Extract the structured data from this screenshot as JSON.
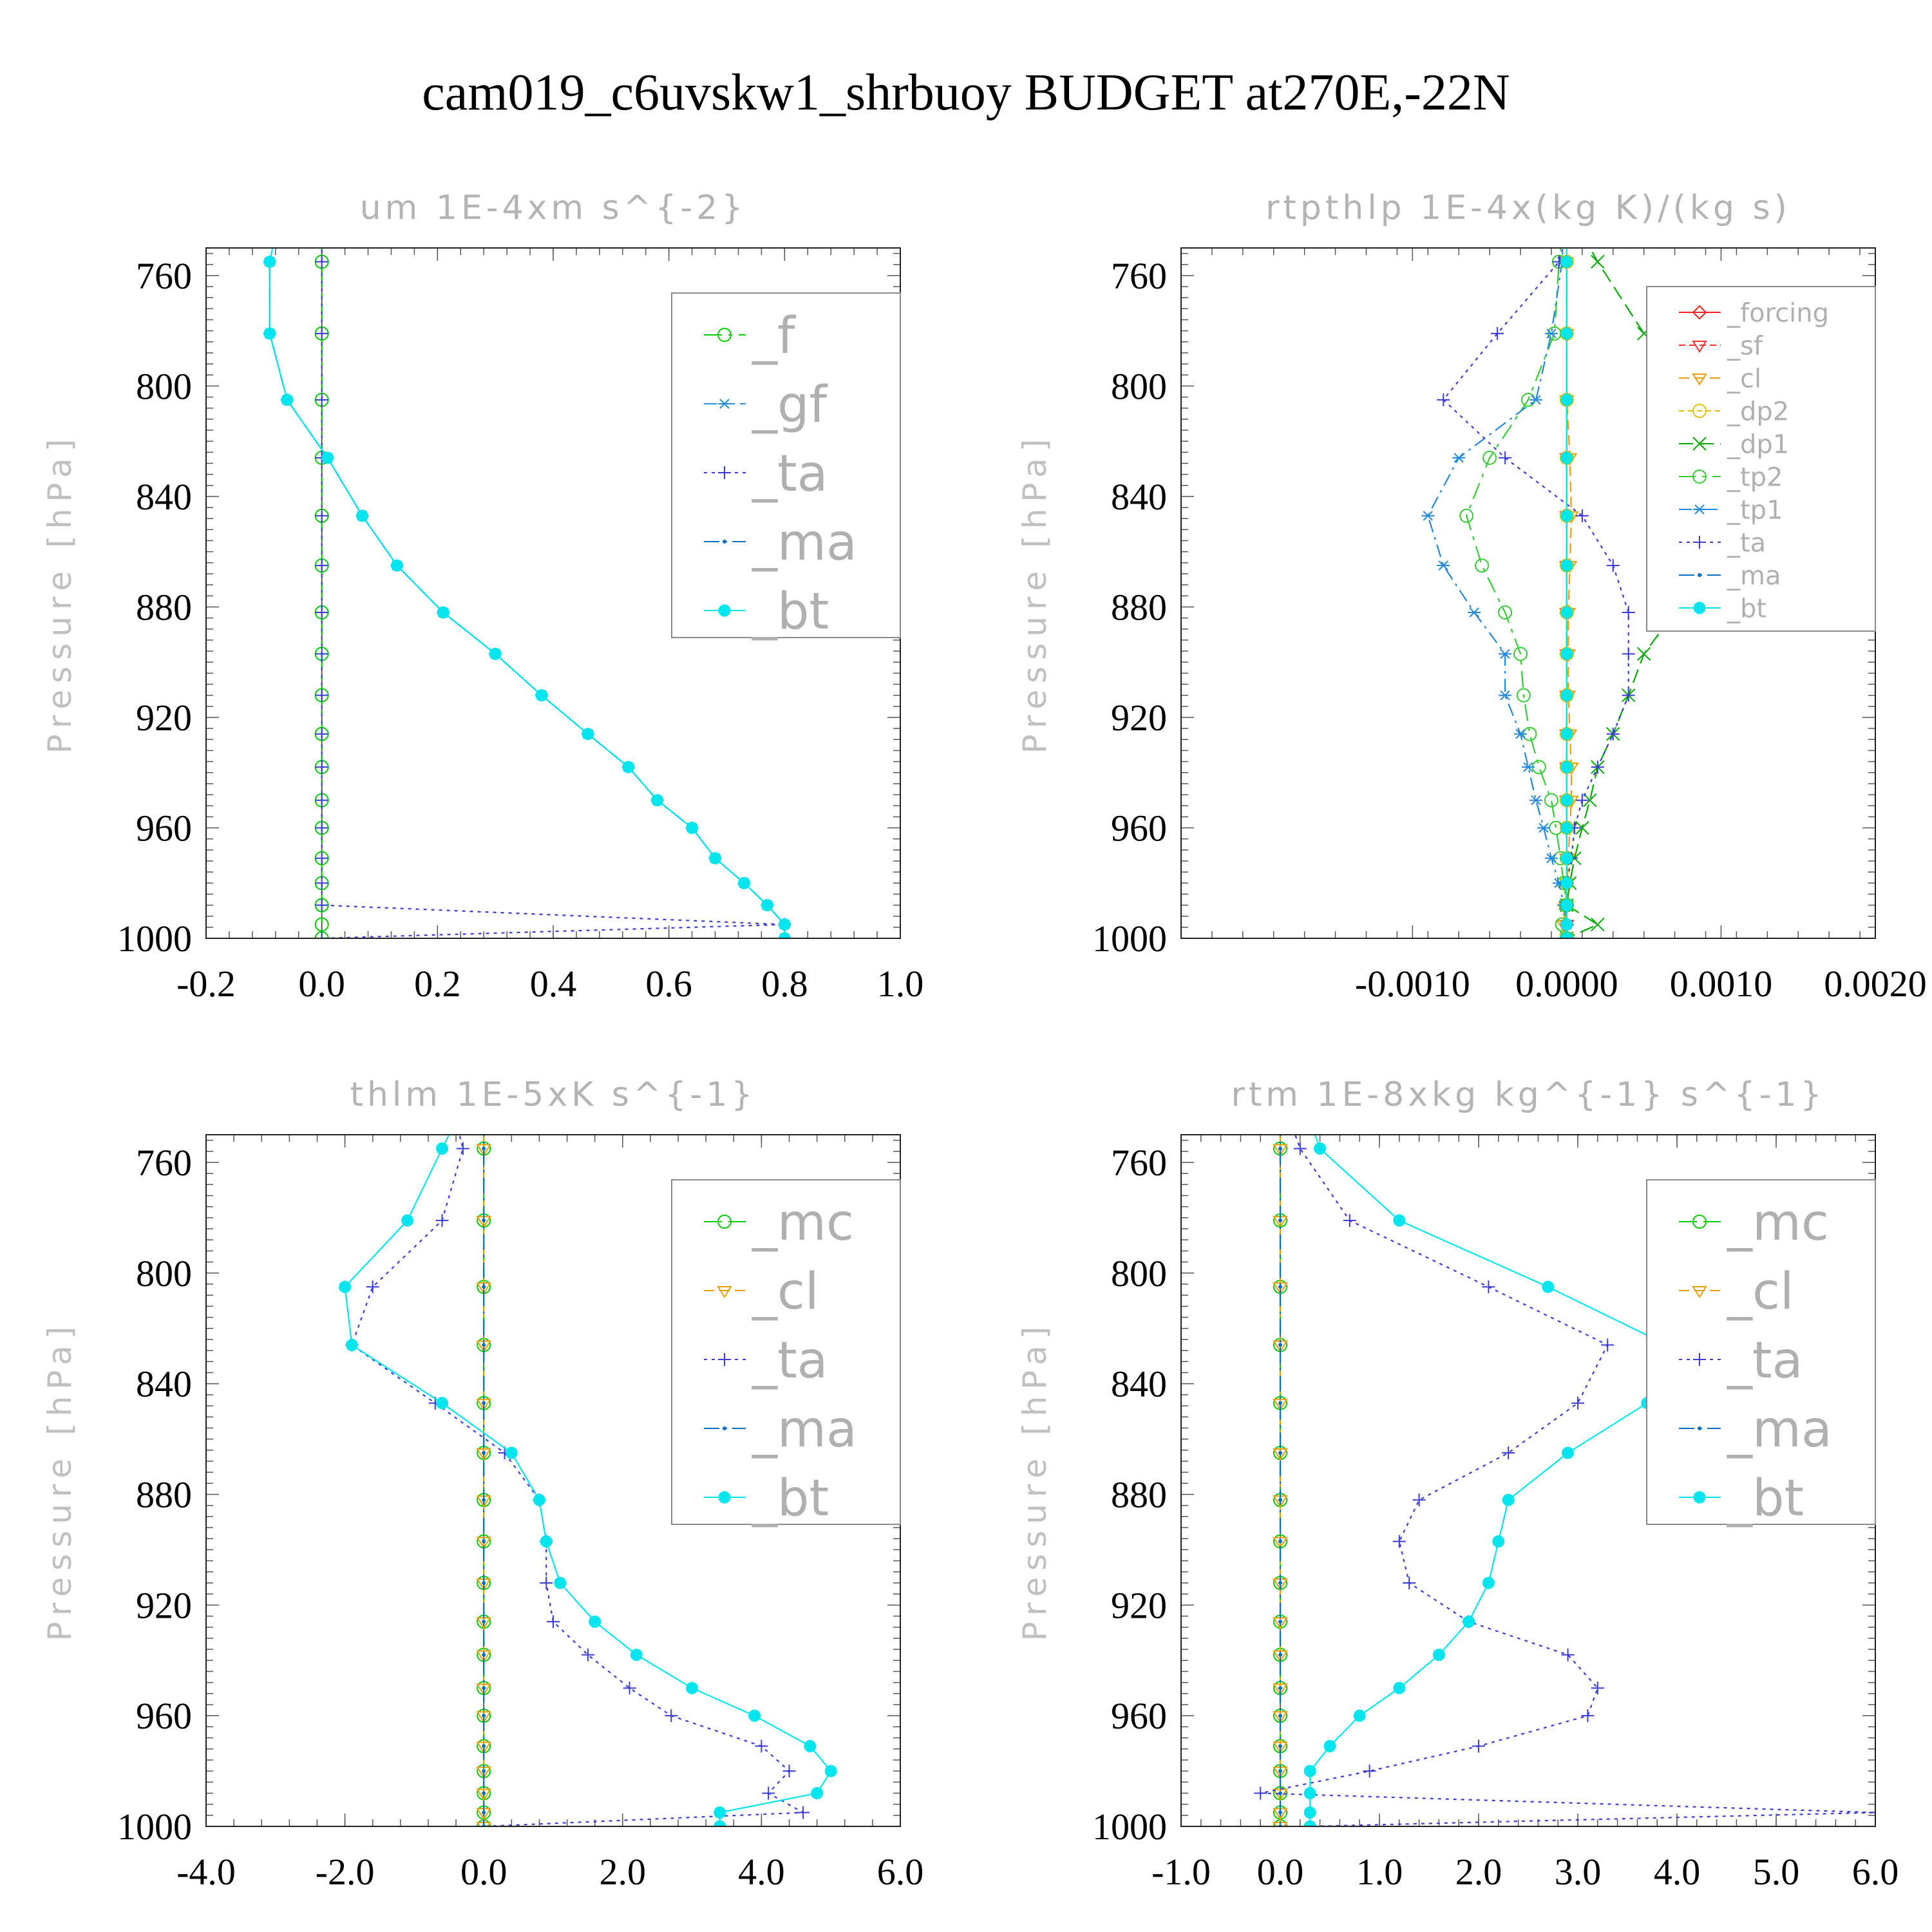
{
  "title": "cam019_c6uvskw1_shrbuoy  BUDGET at270E,-22N",
  "ylabel": "Pressure [hPa]",
  "colors": {
    "_f": "#00cc00",
    "_gf": "#2090e0",
    "_ta": "#3b3bd8",
    "_ma": "#0070c0",
    "_bt": "#00e5ee",
    "_forcing": "#ff2020",
    "_sf": "#ff3030",
    "_cl": "#e8a000",
    "_dp2": "#e0c000",
    "_dp1": "#00aa00",
    "_tp2": "#33cc33",
    "_tp1": "#2288dd",
    "_mc": "#00cc00",
    "_cl2": "#2090e0"
  },
  "chart_data": [
    {
      "type": "line",
      "title": "um  1E-4xm s^{-2}",
      "ylabel": "Pressure [hPa]",
      "xlim": [
        -0.2,
        1.0
      ],
      "ylim": [
        1000,
        750
      ],
      "xticks": [
        "-0.2",
        "0.0",
        "0.2",
        "0.4",
        "0.6",
        "0.8",
        "1.0"
      ],
      "xtick_values": [
        -0.2,
        0.0,
        0.2,
        0.4,
        0.6,
        0.8,
        1.0
      ],
      "yticks": [
        "760",
        "800",
        "840",
        "880",
        "920",
        "960",
        "1000"
      ],
      "legend_position": "upper-right",
      "legend": [
        "_f",
        "_gf",
        "_ta",
        "_ma",
        "_bt"
      ],
      "y": [
        745,
        755,
        781,
        805,
        826,
        847,
        865,
        882,
        897,
        912,
        926,
        938,
        950,
        960,
        971,
        980,
        988,
        995,
        1000
      ],
      "series": [
        {
          "name": "_f",
          "values": [
            0,
            0,
            0,
            0,
            0,
            0,
            0,
            0,
            0,
            0,
            0,
            0,
            0,
            0,
            0,
            0,
            0,
            0,
            0
          ]
        },
        {
          "name": "_gf",
          "values": [
            -0.08,
            -0.09,
            -0.09,
            -0.06,
            0.01,
            0.07,
            0.13,
            0.21,
            0.3,
            0.38,
            0.46,
            0.53,
            0.58,
            0.64,
            0.68,
            0.73,
            0.77,
            0.8,
            0.8
          ]
        },
        {
          "name": "_ta",
          "values": [
            0,
            0,
            0,
            0,
            0,
            0,
            0,
            0,
            0,
            0,
            0,
            0,
            0,
            0,
            0,
            0,
            0,
            0.8,
            0
          ]
        },
        {
          "name": "_ma",
          "values": [
            -0.08,
            -0.09,
            -0.09,
            -0.06,
            0.01,
            0.07,
            0.13,
            0.21,
            0.3,
            0.38,
            0.46,
            0.53,
            0.58,
            0.64,
            0.68,
            0.73,
            0.77,
            0.8,
            0.8
          ]
        },
        {
          "name": "_bt",
          "values": [
            -0.08,
            -0.09,
            -0.09,
            -0.06,
            0.01,
            0.07,
            0.13,
            0.21,
            0.3,
            0.38,
            0.46,
            0.53,
            0.58,
            0.64,
            0.68,
            0.73,
            0.77,
            0.8,
            0.8
          ]
        }
      ]
    },
    {
      "type": "line",
      "title": "rtpthlp  1E-4x(kg K)/(kg s)",
      "ylabel": "Pressure [hPa]",
      "xlim": [
        -0.0025,
        0.002
      ],
      "ylim": [
        1000,
        750
      ],
      "xticks": [
        "-0.0010",
        "0.0000",
        "0.0010",
        "0.0020"
      ],
      "xtick_values": [
        -0.001,
        0.0,
        0.001,
        0.002
      ],
      "yticks": [
        "760",
        "800",
        "840",
        "880",
        "920",
        "960",
        "1000"
      ],
      "legend_position": "upper-right",
      "legend": [
        "_forcing",
        "_sf",
        "_cl",
        "_dp2",
        "_dp1",
        "_tp2",
        "_tp1",
        "_ta",
        "_ma",
        "_bt"
      ],
      "y": [
        745,
        755,
        781,
        805,
        826,
        847,
        865,
        882,
        897,
        912,
        926,
        938,
        950,
        960,
        971,
        980,
        988,
        995,
        1000
      ],
      "series": [
        {
          "name": "_forcing",
          "values": [
            0,
            0,
            0,
            0,
            0,
            0,
            0,
            0,
            0,
            0,
            0,
            0,
            0,
            0,
            0,
            0,
            0,
            0,
            0
          ]
        },
        {
          "name": "_sf",
          "values": [
            0,
            0,
            0,
            0,
            0,
            0,
            0,
            0,
            0,
            0,
            0,
            0,
            0,
            0,
            0,
            0,
            0,
            0,
            0
          ]
        },
        {
          "name": "_cl",
          "values": [
            0,
            0,
            0,
            0,
            2e-05,
            3e-05,
            2e-05,
            1e-05,
            1e-05,
            1e-05,
            2e-05,
            3e-05,
            3e-05,
            2e-05,
            1e-05,
            0,
            0,
            -2e-05,
            0
          ]
        },
        {
          "name": "_dp2",
          "values": [
            0,
            0,
            0,
            0,
            0,
            0,
            0,
            0,
            0,
            0,
            0,
            0,
            0,
            0,
            0,
            0,
            -1e-05,
            -3e-05,
            0
          ]
        },
        {
          "name": "_dp1",
          "values": [
            0.0001,
            0.0002,
            0.0005,
            0.001,
            0.0017,
            0.0016,
            0.0011,
            0.0007,
            0.0005,
            0.0004,
            0.0003,
            0.0002,
            0.00015,
            0.0001,
            5e-05,
            2e-05,
            0,
            0.0002,
            0
          ]
        },
        {
          "name": "_tp2",
          "values": [
            -3e-05,
            -5e-05,
            -8e-05,
            -0.00025,
            -0.0005,
            -0.00065,
            -0.00055,
            -0.0004,
            -0.0003,
            -0.00028,
            -0.00024,
            -0.00018,
            -0.0001,
            -7e-05,
            -4e-05,
            -2e-05,
            0,
            -3e-05,
            0
          ]
        },
        {
          "name": "_tp1",
          "values": [
            -2e-05,
            -3e-05,
            -0.0001,
            -0.0002,
            -0.0007,
            -0.0009,
            -0.0008,
            -0.0006,
            -0.0004,
            -0.0004,
            -0.0003,
            -0.00025,
            -0.0002,
            -0.00015,
            -0.0001,
            -5e-05,
            -2e-05,
            0,
            0
          ]
        },
        {
          "name": "_ta",
          "values": [
            0,
            -5e-05,
            -0.00045,
            -0.0008,
            -0.0004,
            0.0001,
            0.0003,
            0.0004,
            0.0004,
            0.0004,
            0.0003,
            0.0002,
            0.0001,
            5e-05,
            3e-05,
            0,
            0,
            0,
            0
          ]
        },
        {
          "name": "_ma",
          "values": [
            0,
            0,
            0,
            0,
            0,
            0,
            0,
            0,
            0,
            0,
            0,
            0,
            0,
            0,
            0,
            0,
            0,
            0,
            0
          ]
        },
        {
          "name": "_bt",
          "values": [
            0,
            0,
            0,
            0,
            0,
            0,
            0,
            0,
            0,
            0,
            0,
            0,
            0,
            0,
            0,
            0,
            0,
            0,
            0
          ]
        }
      ]
    },
    {
      "type": "line",
      "title": "thlm  1E-5xK s^{-1}",
      "ylabel": "Pressure [hPa]",
      "xlim": [
        -4.0,
        6.0
      ],
      "ylim": [
        1000,
        750
      ],
      "xticks": [
        "-4.0",
        "-2.0",
        "0.0",
        "2.0",
        "4.0",
        "6.0"
      ],
      "xtick_values": [
        -4.0,
        -2.0,
        0.0,
        2.0,
        4.0,
        6.0
      ],
      "yticks": [
        "760",
        "800",
        "840",
        "880",
        "920",
        "960",
        "1000"
      ],
      "legend_position": "upper-right",
      "legend": [
        "_mc",
        "_cl",
        "_ta",
        "_ma",
        "_bt"
      ],
      "y": [
        745,
        755,
        781,
        805,
        826,
        847,
        865,
        882,
        897,
        912,
        926,
        938,
        950,
        960,
        971,
        980,
        988,
        995,
        1000
      ],
      "series": [
        {
          "name": "_mc",
          "values": [
            0,
            0,
            0,
            0,
            0,
            0,
            0,
            0,
            0,
            0,
            0,
            0,
            0,
            0,
            0,
            0,
            0,
            0,
            0
          ]
        },
        {
          "name": "_cl",
          "values": [
            0,
            0,
            0,
            0,
            0,
            0,
            0,
            0,
            0,
            0,
            0,
            0,
            0,
            0,
            0,
            0,
            0,
            0,
            0
          ]
        },
        {
          "name": "_ta",
          "values": [
            -0.4,
            -0.3,
            -0.6,
            -1.6,
            -1.9,
            -0.7,
            0.3,
            0.8,
            0.9,
            0.9,
            1.0,
            1.5,
            2.1,
            2.7,
            4.0,
            4.4,
            4.1,
            4.6,
            0
          ]
        },
        {
          "name": "_ma",
          "values": [
            0,
            0,
            0,
            0,
            0,
            0,
            0,
            0,
            0,
            0,
            0,
            0,
            0,
            0,
            0,
            0,
            0,
            0,
            0
          ]
        },
        {
          "name": "_bt",
          "values": [
            -0.4,
            -0.6,
            -1.1,
            -2.0,
            -1.9,
            -0.6,
            0.4,
            0.8,
            0.9,
            1.1,
            1.6,
            2.2,
            3.0,
            3.9,
            4.7,
            5.0,
            4.8,
            3.4,
            3.4
          ]
        }
      ]
    },
    {
      "type": "line",
      "title": "rtm  1E-8xkg kg^{-1} s^{-1}",
      "ylabel": "Pressure [hPa]",
      "xlim": [
        -1.0,
        6.0
      ],
      "ylim": [
        1000,
        750
      ],
      "xticks": [
        "-1.0",
        "0.0",
        "1.0",
        "2.0",
        "3.0",
        "4.0",
        "5.0",
        "6.0"
      ],
      "xtick_values": [
        -1.0,
        0.0,
        1.0,
        2.0,
        3.0,
        4.0,
        5.0,
        6.0
      ],
      "yticks": [
        "760",
        "800",
        "840",
        "880",
        "920",
        "960",
        "1000"
      ],
      "legend_position": "upper-right",
      "legend": [
        "_mc",
        "_cl",
        "_ta",
        "_ma",
        "_bt"
      ],
      "y": [
        745,
        755,
        781,
        805,
        826,
        847,
        865,
        882,
        897,
        912,
        926,
        938,
        950,
        960,
        971,
        980,
        988,
        995,
        1000
      ],
      "series": [
        {
          "name": "_mc",
          "values": [
            0,
            0,
            0,
            0,
            0,
            0,
            0,
            0,
            0,
            0,
            0,
            0,
            0,
            0,
            0,
            0,
            0,
            0,
            0
          ]
        },
        {
          "name": "_cl",
          "values": [
            0,
            0,
            0,
            0,
            0,
            0,
            0,
            0,
            0,
            0,
            0,
            0,
            0,
            0,
            0,
            0,
            0,
            0,
            0
          ]
        },
        {
          "name": "_ta",
          "values": [
            0.1,
            0.2,
            0.7,
            2.1,
            3.3,
            3.0,
            2.3,
            1.4,
            1.2,
            1.3,
            1.9,
            2.9,
            3.2,
            3.1,
            2.0,
            0.9,
            -0.2,
            6.0,
            0.3
          ]
        },
        {
          "name": "_ma",
          "values": [
            0,
            0,
            0,
            0,
            0,
            0,
            0,
            0,
            0,
            0,
            0,
            0,
            0,
            0,
            0,
            0,
            0,
            0,
            0
          ]
        },
        {
          "name": "_bt",
          "values": [
            0.3,
            0.4,
            1.2,
            2.7,
            3.9,
            3.7,
            2.9,
            2.3,
            2.2,
            2.1,
            1.9,
            1.6,
            1.2,
            0.8,
            0.5,
            0.3,
            0.3,
            0.3,
            0.3
          ]
        }
      ]
    }
  ]
}
